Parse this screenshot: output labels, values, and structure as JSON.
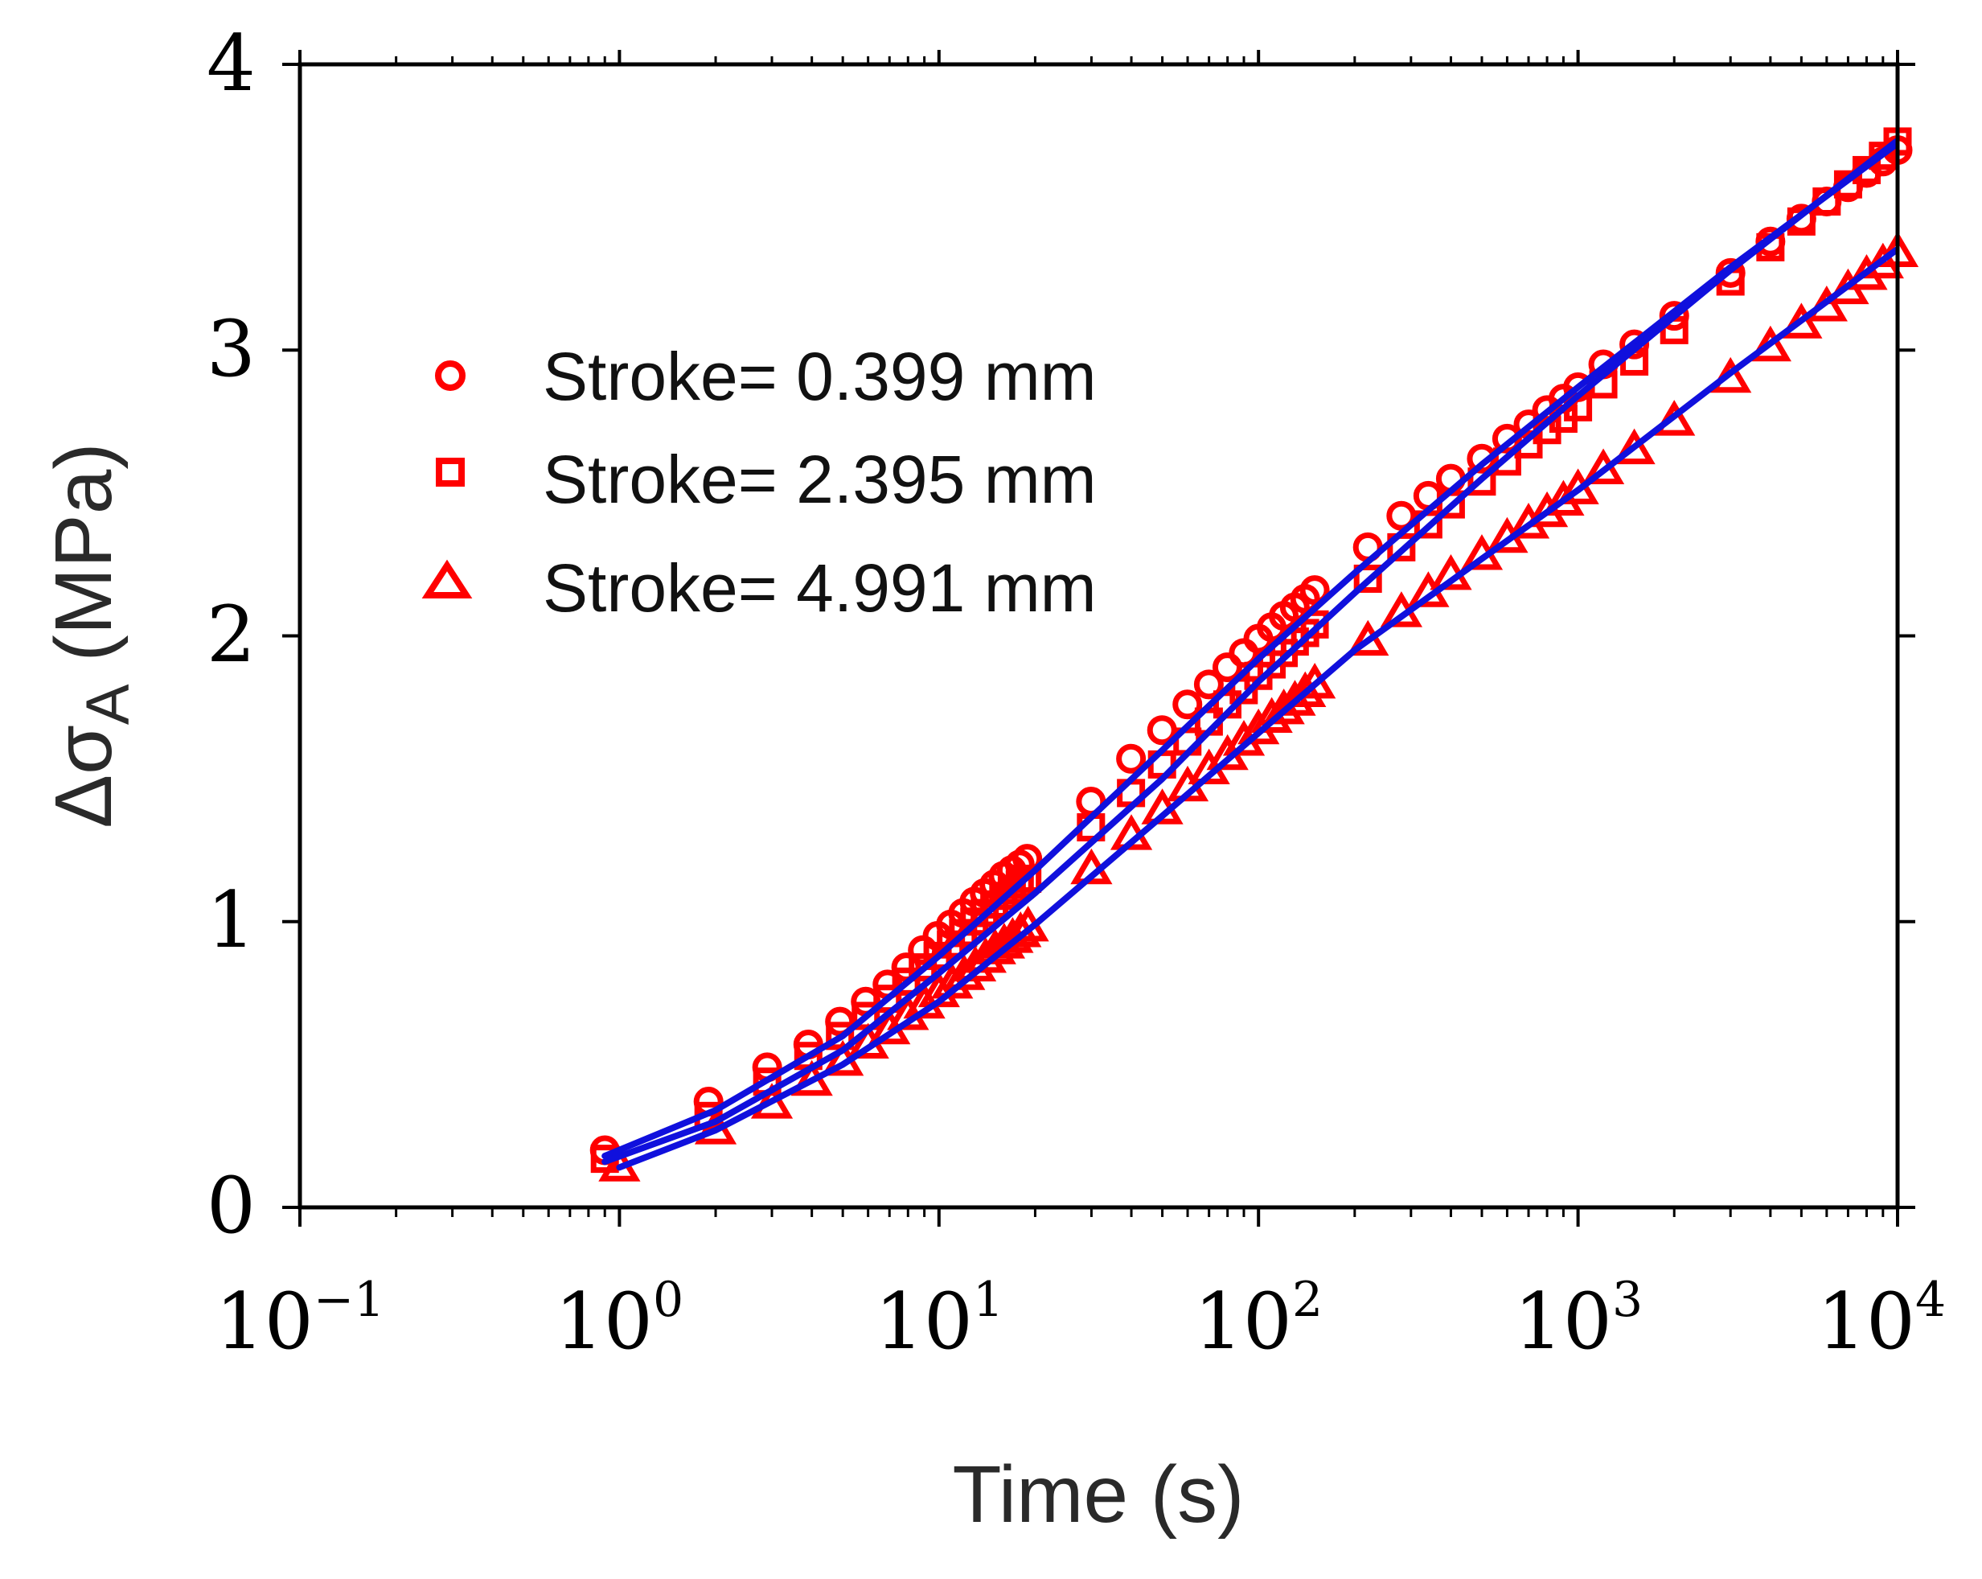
{
  "chart_data": {
    "type": "scatter",
    "title": "",
    "xlabel": "Time (s)",
    "ylabel_main": "Δσ",
    "ylabel_sub": "A",
    "ylabel_unit": " (MPa)",
    "xscale": "log",
    "xlim_exp": [
      -1,
      4
    ],
    "ylim": [
      0,
      4
    ],
    "x_ticks": [
      {
        "base": "10",
        "exp": "−1",
        "value": -1
      },
      {
        "base": "10",
        "exp": "0",
        "value": 0
      },
      {
        "base": "10",
        "exp": "1",
        "value": 1
      },
      {
        "base": "10",
        "exp": "2",
        "value": 2
      },
      {
        "base": "10",
        "exp": "3",
        "value": 3
      },
      {
        "base": "10",
        "exp": "4",
        "value": 4
      }
    ],
    "y_ticks": [
      {
        "label": "0",
        "value": 0
      },
      {
        "label": "1",
        "value": 1
      },
      {
        "label": "2",
        "value": 2
      },
      {
        "label": "3",
        "value": 3
      },
      {
        "label": "4",
        "value": 4
      }
    ],
    "legend_position": "upper-left",
    "marker_color": "#ff0000",
    "fit_color": "#1010dd",
    "series": [
      {
        "name": "Stroke= 0.399 mm",
        "marker": "circle",
        "x": [
          0.9,
          1.9,
          2.9,
          3.9,
          4.9,
          5.9,
          6.9,
          7.9,
          8.9,
          9.9,
          10.9,
          11.9,
          12.9,
          13.9,
          14.9,
          15.9,
          16.9,
          17.9,
          18.9,
          29.9,
          39.9,
          49.9,
          59.9,
          69.9,
          79.9,
          89.9,
          99.9,
          109.9,
          119.9,
          129.9,
          139.9,
          149.9,
          219.9,
          279.9,
          339.9,
          399.9,
          499.9,
          599.9,
          699.9,
          799.9,
          899.9,
          999.9,
          1199.9,
          1499.9,
          1999.9,
          2999.9,
          3999.9,
          4999.9,
          5999.9,
          6999.9,
          7999.9,
          8999.9,
          9999.9
        ],
        "y": [
          0.2,
          0.37,
          0.49,
          0.57,
          0.65,
          0.72,
          0.78,
          0.84,
          0.9,
          0.95,
          0.99,
          1.03,
          1.07,
          1.1,
          1.13,
          1.16,
          1.18,
          1.2,
          1.22,
          1.42,
          1.57,
          1.67,
          1.76,
          1.83,
          1.89,
          1.94,
          1.99,
          2.03,
          2.07,
          2.1,
          2.13,
          2.16,
          2.31,
          2.42,
          2.49,
          2.55,
          2.62,
          2.69,
          2.74,
          2.79,
          2.83,
          2.87,
          2.95,
          3.02,
          3.12,
          3.27,
          3.38,
          3.46,
          3.52,
          3.57,
          3.62,
          3.66,
          3.7
        ],
        "fit": {
          "x": [
            0.9,
            2,
            5,
            10,
            20,
            50,
            100,
            200,
            500,
            1000,
            3000,
            9900
          ],
          "y": [
            0.18,
            0.34,
            0.6,
            0.88,
            1.18,
            1.6,
            1.92,
            2.22,
            2.6,
            2.87,
            3.29,
            3.72
          ]
        }
      },
      {
        "name": "Stroke= 2.395 mm",
        "marker": "square",
        "x": [
          0.9,
          1.9,
          2.9,
          3.9,
          4.9,
          5.9,
          6.9,
          7.9,
          8.9,
          9.9,
          10.9,
          11.9,
          12.9,
          13.9,
          14.9,
          15.9,
          16.9,
          17.9,
          18.9,
          29.9,
          39.9,
          49.9,
          59.9,
          69.9,
          79.9,
          89.9,
          99.9,
          109.9,
          119.9,
          129.9,
          139.9,
          149.9,
          219.9,
          279.9,
          339.9,
          399.9,
          499.9,
          599.9,
          699.9,
          799.9,
          899.9,
          999.9,
          1199.9,
          1499.9,
          1999.9,
          2999.9,
          3999.9,
          4999.9,
          5999.9,
          6999.9,
          7999.9,
          8999.9,
          9999.9
        ],
        "y": [
          0.17,
          0.32,
          0.44,
          0.53,
          0.6,
          0.67,
          0.73,
          0.79,
          0.84,
          0.88,
          0.92,
          0.96,
          1.0,
          1.03,
          1.06,
          1.09,
          1.11,
          1.13,
          1.15,
          1.33,
          1.45,
          1.55,
          1.63,
          1.7,
          1.76,
          1.81,
          1.86,
          1.9,
          1.94,
          1.98,
          2.01,
          2.04,
          2.2,
          2.31,
          2.39,
          2.46,
          2.54,
          2.61,
          2.67,
          2.72,
          2.76,
          2.8,
          2.88,
          2.96,
          3.07,
          3.24,
          3.36,
          3.45,
          3.52,
          3.58,
          3.63,
          3.68,
          3.73
        ],
        "fit": {
          "x": [
            0.9,
            2,
            5,
            10,
            20,
            50,
            100,
            200,
            500,
            1000,
            3000,
            9900
          ],
          "y": [
            0.16,
            0.3,
            0.55,
            0.82,
            1.1,
            1.5,
            1.84,
            2.15,
            2.55,
            2.84,
            3.28,
            3.73
          ]
        }
      },
      {
        "name": "Stroke= 4.991 mm",
        "marker": "triangle",
        "x": [
          1.0,
          2.0,
          3.0,
          4.0,
          5.0,
          6.0,
          7.0,
          8.0,
          9.0,
          10.0,
          11.0,
          12.0,
          13.0,
          14.0,
          15.0,
          16.0,
          17.0,
          18.0,
          19.0,
          30.0,
          40.0,
          50.0,
          60.0,
          70.0,
          80.0,
          90.0,
          100.0,
          110.0,
          120.0,
          130.0,
          140.0,
          150.0,
          220.0,
          280.0,
          340.0,
          400.0,
          500.0,
          600.0,
          700.0,
          800.0,
          900.0,
          1000.0,
          1200.0,
          1500.0,
          2000.0,
          3000.0,
          4000.0,
          5000.0,
          6000.0,
          7000.0,
          8000.0,
          9000.0,
          10000.0
        ],
        "y": [
          0.14,
          0.27,
          0.36,
          0.44,
          0.51,
          0.57,
          0.62,
          0.67,
          0.71,
          0.75,
          0.78,
          0.81,
          0.84,
          0.87,
          0.9,
          0.92,
          0.94,
          0.96,
          0.98,
          1.18,
          1.3,
          1.39,
          1.47,
          1.53,
          1.58,
          1.63,
          1.67,
          1.71,
          1.74,
          1.77,
          1.8,
          1.83,
          1.98,
          2.08,
          2.15,
          2.21,
          2.28,
          2.34,
          2.39,
          2.43,
          2.47,
          2.51,
          2.58,
          2.65,
          2.75,
          2.9,
          3.01,
          3.09,
          3.15,
          3.21,
          3.26,
          3.3,
          3.34
        ],
        "fit": {
          "x": [
            1.0,
            2,
            5,
            10,
            20,
            50,
            100,
            200,
            500,
            1000,
            3000,
            9900
          ],
          "y": [
            0.14,
            0.27,
            0.5,
            0.72,
            0.99,
            1.37,
            1.66,
            1.95,
            2.27,
            2.51,
            2.92,
            3.35
          ]
        }
      }
    ]
  }
}
